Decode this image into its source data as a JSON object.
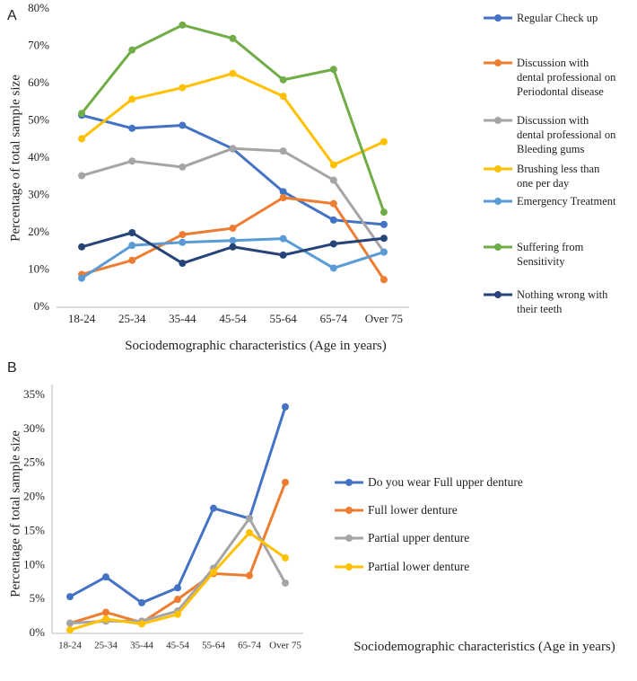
{
  "chart_data": [
    {
      "type": "line",
      "panel": "A",
      "ylabel": "Percentage of total sample size",
      "xlabel": "Sociodemographic characteristics (Age in years)",
      "categories": [
        "18-24",
        "25-34",
        "35-44",
        "45-54",
        "55-64",
        "65-74",
        "Over 75"
      ],
      "ylim": [
        0,
        80
      ],
      "yticks": [
        {
          "value": 0,
          "label": "0%"
        },
        {
          "value": 10,
          "label": "10%"
        },
        {
          "value": 20,
          "label": "20%"
        },
        {
          "value": 30,
          "label": "30%"
        },
        {
          "value": 40,
          "label": "40%"
        },
        {
          "value": 50,
          "label": "50%"
        },
        {
          "value": 60,
          "label": "60%"
        },
        {
          "value": 70,
          "label": "70%"
        },
        {
          "value": 80,
          "label": "80%"
        }
      ],
      "grid": false,
      "legend": "right",
      "series": [
        {
          "name": "Regular Check up",
          "color": "#4472c4",
          "values": [
            51.5,
            48,
            48.8,
            42.5,
            31,
            23.4,
            22.2
          ]
        },
        {
          "name": "Discussion with dental professional on Periodontal disease",
          "color": "#ed7d31",
          "values": [
            8.8,
            12.6,
            19.5,
            21.2,
            29.4,
            27.8,
            7.4
          ]
        },
        {
          "name": "Discussion with dental professional on Bleeding gums",
          "color": "#a5a5a5",
          "values": [
            35.3,
            39.2,
            37.6,
            42.6,
            41.9,
            34.1,
            14.8
          ]
        },
        {
          "name": "Brushing less than one per day",
          "color": "#ffc000",
          "values": [
            45.2,
            55.8,
            58.9,
            62.7,
            56.6,
            38.2,
            44.4
          ]
        },
        {
          "name": "Emergency Treatment",
          "color": "#5b9bd5",
          "values": [
            7.8,
            16.6,
            17.4,
            17.9,
            18.4,
            10.5,
            14.8
          ]
        },
        {
          "name": "Suffering from Sensitivity",
          "color": "#70ad47",
          "values": [
            52,
            69,
            75.7,
            72.1,
            61,
            63.8,
            25.5
          ]
        },
        {
          "name": "Nothing wrong with their teeth",
          "color": "#264478",
          "values": [
            16.2,
            20,
            11.8,
            16.2,
            14,
            17,
            18.5
          ]
        }
      ]
    },
    {
      "type": "line",
      "panel": "B",
      "ylabel": "Percentage of total sample size",
      "xlabel": "Sociodemographic characteristics (Age in years)",
      "categories": [
        "18-24",
        "25-34",
        "35-44",
        "45-54",
        "55-64",
        "65-74",
        "Over 75"
      ],
      "ylim": [
        0,
        35
      ],
      "yticks": [
        {
          "value": 0,
          "label": "0%"
        },
        {
          "value": 5,
          "label": "5%"
        },
        {
          "value": 10,
          "label": "10%"
        },
        {
          "value": 15,
          "label": "15%"
        },
        {
          "value": 20,
          "label": "20%"
        },
        {
          "value": 25,
          "label": "25%"
        },
        {
          "value": 30,
          "label": "30%"
        },
        {
          "value": 35,
          "label": "35%"
        }
      ],
      "grid": false,
      "legend": "right",
      "series": [
        {
          "name": "Do you wear Full upper denture",
          "color": "#4472c4",
          "values": [
            5.4,
            8.3,
            4.5,
            6.7,
            18.4,
            16.9,
            33.3
          ]
        },
        {
          "name": "Full lower denture",
          "color": "#ed7d31",
          "values": [
            1.5,
            3.1,
            1.6,
            5,
            8.8,
            8.5,
            22.2
          ]
        },
        {
          "name": "Partial upper denture",
          "color": "#a5a5a5",
          "values": [
            1.5,
            1.8,
            1.8,
            3.3,
            9.6,
            16.9,
            7.4
          ]
        },
        {
          "name": "Partial lower denture",
          "color": "#ffc000",
          "values": [
            0.5,
            2.1,
            1.4,
            2.8,
            9,
            14.8,
            11.1
          ]
        }
      ]
    }
  ]
}
